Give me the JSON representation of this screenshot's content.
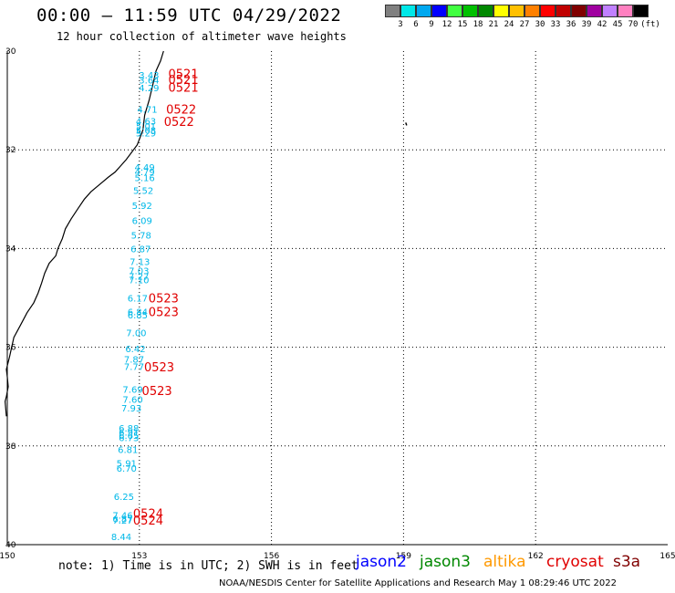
{
  "header": {
    "title": "00:00 – 11:59 UTC 04/29/2022",
    "subtitle": "12 hour collection of altimeter wave heights"
  },
  "scale": {
    "colors": [
      "#808080",
      "#00e8e8",
      "#00a8f0",
      "#0000ff",
      "#40ff40",
      "#00c000",
      "#008800",
      "#ffff00",
      "#ffc000",
      "#ff8000",
      "#ff0000",
      "#c00000",
      "#800000",
      "#a000a0",
      "#c080ff",
      "#ff80c0",
      "#000000"
    ],
    "labels": [
      "3",
      "6",
      "9",
      "12",
      "15",
      "18",
      "21",
      "24",
      "27",
      "30",
      "33",
      "36",
      "39",
      "42",
      "45",
      "70",
      "(ft)"
    ]
  },
  "map": {
    "lon_range": [
      150,
      165
    ],
    "lat_range": [
      -40,
      -30
    ],
    "lon_ticks": [
      150,
      153,
      156,
      159,
      162,
      165
    ],
    "lon_labels": [
      "150",
      "153",
      "156",
      "159",
      "162",
      "165"
    ],
    "lat_ticks": [
      -30,
      -32,
      -34,
      -36,
      -38,
      -40
    ],
    "lat_labels": [
      "30",
      "32",
      "34",
      "36",
      "38",
      "40"
    ],
    "grid": true,
    "wave_color": "#00b8e8",
    "time_color": "#e00000",
    "observations": [
      {
        "lon": 153.22,
        "lat": -30.48,
        "swh": "3.43"
      },
      {
        "lon": 153.22,
        "lat": -30.58,
        "swh": "3.64"
      },
      {
        "lon": 153.22,
        "lat": -30.74,
        "swh": "4.29"
      },
      {
        "lon": 153.18,
        "lat": -31.17,
        "swh": "4.71"
      },
      {
        "lon": 153.15,
        "lat": -31.41,
        "swh": "4.63"
      },
      {
        "lon": 153.15,
        "lat": -31.52,
        "swh": "5.01"
      },
      {
        "lon": 153.15,
        "lat": -31.6,
        "swh": "5.08"
      },
      {
        "lon": 153.15,
        "lat": -31.65,
        "swh": "5.29"
      },
      {
        "lon": 153.12,
        "lat": -32.35,
        "swh": "4.49"
      },
      {
        "lon": 153.12,
        "lat": -32.44,
        "swh": "4.79"
      },
      {
        "lon": 153.12,
        "lat": -32.56,
        "swh": "5.16"
      },
      {
        "lon": 153.09,
        "lat": -32.82,
        "swh": "5.52"
      },
      {
        "lon": 153.06,
        "lat": -33.12,
        "swh": "5.92"
      },
      {
        "lon": 153.06,
        "lat": -33.43,
        "swh": "6.09"
      },
      {
        "lon": 153.04,
        "lat": -33.72,
        "swh": "5.78"
      },
      {
        "lon": 153.03,
        "lat": -34.0,
        "swh": "6.87"
      },
      {
        "lon": 153.01,
        "lat": -34.26,
        "swh": "7.13"
      },
      {
        "lon": 152.99,
        "lat": -34.45,
        "swh": "7.03"
      },
      {
        "lon": 152.99,
        "lat": -34.56,
        "swh": "7.27"
      },
      {
        "lon": 152.99,
        "lat": -34.63,
        "swh": "7.10"
      },
      {
        "lon": 152.96,
        "lat": -35.0,
        "swh": "6.17"
      },
      {
        "lon": 152.96,
        "lat": -35.28,
        "swh": "6.84"
      },
      {
        "lon": 152.96,
        "lat": -35.34,
        "swh": "6.85"
      },
      {
        "lon": 152.93,
        "lat": -35.7,
        "swh": "7.00"
      },
      {
        "lon": 152.91,
        "lat": -36.03,
        "swh": "6.42"
      },
      {
        "lon": 152.88,
        "lat": -36.24,
        "swh": "7.87"
      },
      {
        "lon": 152.88,
        "lat": -36.39,
        "swh": "7.77"
      },
      {
        "lon": 152.85,
        "lat": -36.85,
        "swh": "7.69"
      },
      {
        "lon": 152.85,
        "lat": -37.05,
        "swh": "7.60"
      },
      {
        "lon": 152.82,
        "lat": -37.23,
        "swh": "7.93"
      },
      {
        "lon": 152.76,
        "lat": -37.63,
        "swh": "6.88"
      },
      {
        "lon": 152.76,
        "lat": -37.72,
        "swh": "6.91"
      },
      {
        "lon": 152.76,
        "lat": -37.78,
        "swh": "6.65"
      },
      {
        "lon": 152.76,
        "lat": -37.83,
        "swh": "6.73"
      },
      {
        "lon": 152.74,
        "lat": -38.07,
        "swh": "6.81"
      },
      {
        "lon": 152.71,
        "lat": -38.35,
        "swh": "5.91"
      },
      {
        "lon": 152.71,
        "lat": -38.45,
        "swh": "6.70"
      },
      {
        "lon": 152.65,
        "lat": -39.02,
        "swh": "6.25"
      },
      {
        "lon": 152.62,
        "lat": -39.4,
        "swh": "7.46"
      },
      {
        "lon": 152.62,
        "lat": -39.47,
        "swh": "6.87"
      },
      {
        "lon": 152.62,
        "lat": -39.5,
        "swh": "7.27"
      },
      {
        "lon": 152.59,
        "lat": -39.83,
        "swh": "8.44"
      }
    ],
    "times": [
      {
        "lon": 154.0,
        "lat": -30.45,
        "label": "0521"
      },
      {
        "lon": 154.0,
        "lat": -30.57,
        "label": "0521"
      },
      {
        "lon": 154.0,
        "lat": -30.73,
        "label": "0521"
      },
      {
        "lon": 153.95,
        "lat": -31.17,
        "label": "0522"
      },
      {
        "lon": 153.9,
        "lat": -31.42,
        "label": "0522"
      },
      {
        "lon": 153.55,
        "lat": -35.0,
        "label": "0523"
      },
      {
        "lon": 153.55,
        "lat": -35.28,
        "label": "0523"
      },
      {
        "lon": 153.45,
        "lat": -36.4,
        "label": "0523"
      },
      {
        "lon": 153.4,
        "lat": -36.88,
        "label": "0523"
      },
      {
        "lon": 153.2,
        "lat": -39.36,
        "label": "0524"
      },
      {
        "lon": 153.2,
        "lat": -39.5,
        "label": "0524"
      }
    ]
  },
  "footer": {
    "note": "note: 1) Time is in UTC; 2) SWH is in feet",
    "credit": "NOAA/NESDIS Center for Satellite Applications and Research    May  1 08:29:46 UTC 2022",
    "legend": [
      {
        "label": "jason2",
        "color": "#0000ff"
      },
      {
        "label": "jason3",
        "color": "#008800"
      },
      {
        "label": "altika",
        "color": "#ff9900"
      },
      {
        "label": "cryosat",
        "color": "#e00000"
      },
      {
        "label": "s3a",
        "color": "#800000"
      }
    ]
  }
}
